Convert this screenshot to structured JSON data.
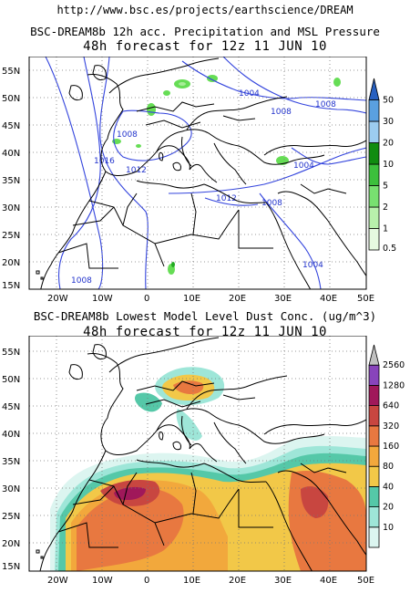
{
  "header": {
    "url": "http://www.bsc.es/projects/earthscience/DREAM"
  },
  "top_map": {
    "title": "BSC-DREAM8b 12h acc. Precipitation and MSL Pressure",
    "subtitle": "48h forecast for 12z 11 JUN 10",
    "lat_labels": [
      "55N",
      "50N",
      "45N",
      "40N",
      "35N",
      "30N",
      "25N",
      "20N",
      "15N"
    ],
    "lon_labels": [
      "20W",
      "10W",
      "0",
      "10E",
      "20E",
      "30E",
      "40E",
      "50E"
    ],
    "isobar_labels": [
      "1004",
      "1008",
      "1008",
      "1008",
      "1016",
      "1012",
      "1004",
      "1012",
      "1008",
      "1004",
      "1008"
    ],
    "colorbar": {
      "labels": [
        "0.5",
        "1",
        "2",
        "5",
        "10",
        "20",
        "30",
        "50"
      ],
      "colors": [
        "#e6fae0",
        "#b8f0ac",
        "#78e070",
        "#3cc03c",
        "#108c10",
        "#9ccdf0",
        "#5aa0e0",
        "#2860c0"
      ]
    },
    "colors": {
      "isobar": "#3344dd",
      "precip": "#66dd55"
    }
  },
  "bottom_map": {
    "title": "BSC-DREAM8b Lowest Model Level Dust Conc. (ug/m^3)",
    "subtitle": "48h forecast for 12z 11 JUN 10",
    "lat_labels": [
      "55N",
      "50N",
      "45N",
      "40N",
      "35N",
      "30N",
      "25N",
      "20N",
      "15N"
    ],
    "lon_labels": [
      "20W",
      "10W",
      "0",
      "10E",
      "20E",
      "30E",
      "40E",
      "50E"
    ],
    "colorbar": {
      "labels": [
        "10",
        "20",
        "40",
        "80",
        "160",
        "320",
        "640",
        "1280",
        "2560"
      ],
      "colors": [
        "#dcf5f0",
        "#9ee6d8",
        "#55c8a8",
        "#f2c848",
        "#f2a83c",
        "#e87840",
        "#c84640",
        "#a0185a",
        "#8844bb",
        "#c0c0c0"
      ]
    }
  }
}
